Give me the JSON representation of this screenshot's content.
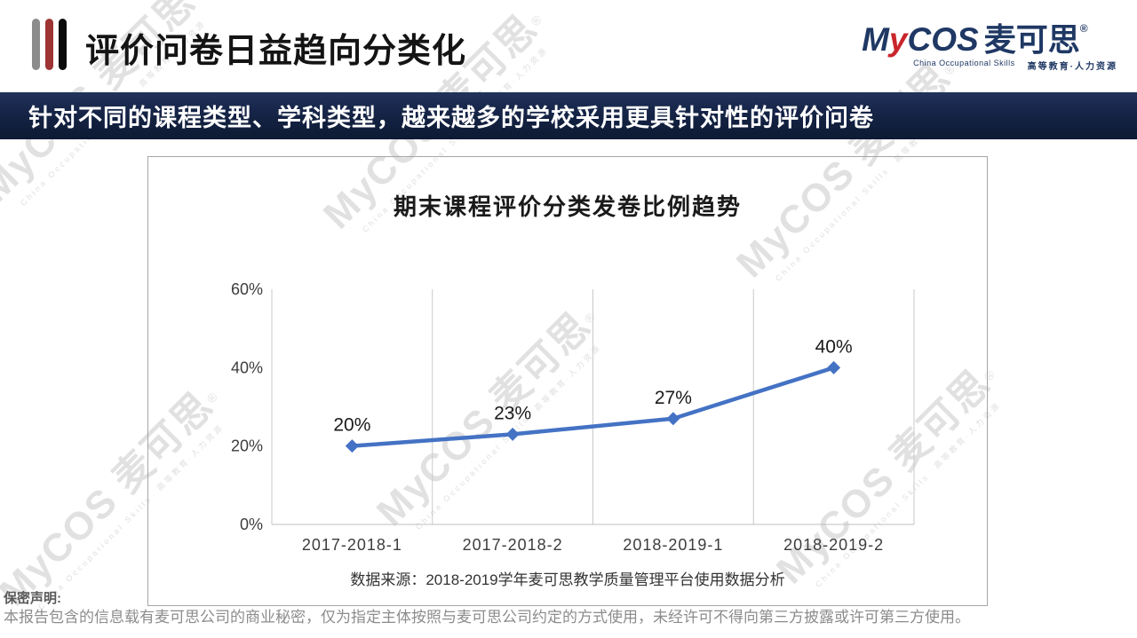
{
  "header": {
    "title": "评价问卷日益趋向分类化"
  },
  "logo": {
    "m": "M",
    "y": "y",
    "cos": "COS",
    "cn": "麦可思",
    "reg": "®",
    "sub_en": "China Occupational Skills",
    "sub_cn": "高等教育·人力资源"
  },
  "banner": {
    "text": "针对不同的课程类型、学科类型，越来越多的学校采用更具针对性的评价问卷"
  },
  "chart_data": {
    "type": "line",
    "title": "期末课程评价分类发卷比例趋势",
    "categories": [
      "2017-2018-1",
      "2017-2018-2",
      "2018-2019-1",
      "2018-2019-2"
    ],
    "values": [
      20,
      23,
      27,
      40
    ],
    "data_labels": [
      "20%",
      "23%",
      "27%",
      "40%"
    ],
    "unit": "%",
    "ylim": [
      0,
      60
    ],
    "yticks": [
      0,
      20,
      40,
      60
    ],
    "ytick_labels": [
      "0%",
      "20%",
      "40%",
      "60%"
    ],
    "grid": "vertical-only",
    "legend": "none",
    "line_color": "#4472C4",
    "marker": "diamond",
    "source": "数据来源：2018-2019学年麦可思教学质量管理平台使用数据分析"
  },
  "footer": {
    "label": "保密声明:",
    "text": "本报告包含的信息载有麦可思公司的商业秘密，仅为指定主体按照与麦可思公司约定的方式使用，未经许可不得向第三方披露或许可第三方使用。"
  },
  "watermark": {
    "brand": "MyCOS 麦可思",
    "reg": "®",
    "sub": "China Occupational Skills　高等教育·人力资源"
  },
  "colors": {
    "banner_navy": "#17264a",
    "logo_navy": "#1f3864",
    "logo_red": "#c9252b",
    "line_blue": "#4472C4",
    "grid_gray": "#c9c9c9",
    "watermark_gray": "#dcdcdc"
  }
}
